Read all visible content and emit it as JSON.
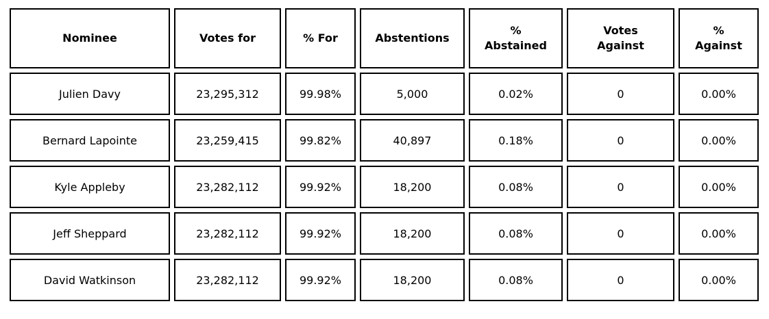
{
  "table": {
    "name": "nominee-voting-results",
    "colors": {
      "border": "#000000",
      "background": "#ffffff",
      "text": "#000000"
    },
    "columns": [
      {
        "label": "Nominee"
      },
      {
        "label": "Votes for"
      },
      {
        "label": "% For"
      },
      {
        "label": "Abstentions"
      },
      {
        "label": "%\nAbstained"
      },
      {
        "label": "Votes\nAgainst"
      },
      {
        "label": "%\nAgainst"
      }
    ],
    "rows": [
      [
        "Julien Davy",
        "23,295,312",
        "99.98%",
        "5,000",
        "0.02%",
        "0",
        "0.00%"
      ],
      [
        "Bernard Lapointe",
        "23,259,415",
        "99.82%",
        "40,897",
        "0.18%",
        "0",
        "0.00%"
      ],
      [
        "Kyle Appleby",
        "23,282,112",
        "99.92%",
        "18,200",
        "0.08%",
        "0",
        "0.00%"
      ],
      [
        "Jeff Sheppard",
        "23,282,112",
        "99.92%",
        "18,200",
        "0.08%",
        "0",
        "0.00%"
      ],
      [
        "David Watkinson",
        "23,282,112",
        "99.92%",
        "18,200",
        "0.08%",
        "0",
        "0.00%"
      ]
    ]
  },
  "chart_data": {
    "type": "table",
    "title": "",
    "categories": [
      "Nominee",
      "Votes for",
      "% For",
      "Abstentions",
      "% Abstained",
      "Votes Against",
      "% Against"
    ],
    "series": [
      {
        "name": "Julien Davy",
        "votes_for": 23295312,
        "pct_for": "99.98%",
        "abstentions": 5000,
        "pct_abstained": "0.02%",
        "votes_against": 0,
        "pct_against": "0.00%"
      },
      {
        "name": "Bernard Lapointe",
        "votes_for": 23259415,
        "pct_for": "99.82%",
        "abstentions": 40897,
        "pct_abstained": "0.18%",
        "votes_against": 0,
        "pct_against": "0.00%"
      },
      {
        "name": "Kyle Appleby",
        "votes_for": 23282112,
        "pct_for": "99.92%",
        "abstentions": 18200,
        "pct_abstained": "0.08%",
        "votes_against": 0,
        "pct_against": "0.00%"
      },
      {
        "name": "Jeff Sheppard",
        "votes_for": 23282112,
        "pct_for": "99.92%",
        "abstentions": 18200,
        "pct_abstained": "0.08%",
        "votes_against": 0,
        "pct_against": "0.00%"
      },
      {
        "name": "David Watkinson",
        "votes_for": 23282112,
        "pct_for": "99.92%",
        "abstentions": 18200,
        "pct_abstained": "0.08%",
        "votes_against": 0,
        "pct_against": "0.00%"
      }
    ]
  }
}
